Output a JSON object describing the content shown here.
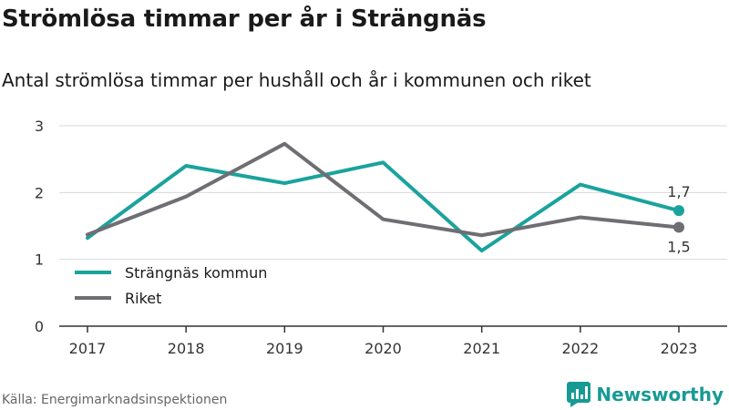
{
  "header": {
    "title": "Strömlösa timmar per år i Strängnäs",
    "subtitle": "Antal strömlösa timmar per hushåll och år i kommunen och riket"
  },
  "footer": {
    "source": "Källa: Energimarknadsinspektionen",
    "brand": "Newsworthy",
    "brand_color": "#189a94",
    "brand_icon": "bar-chart-speech-bubble-icon"
  },
  "chart_data": {
    "type": "line",
    "x": [
      "2017",
      "2018",
      "2019",
      "2020",
      "2021",
      "2022",
      "2023"
    ],
    "ylim": [
      0,
      3
    ],
    "yticks": [
      "0",
      "1",
      "2",
      "3"
    ],
    "grid": true,
    "legend_position": "bottom-left",
    "series": [
      {
        "name": "Strängnäs kommun",
        "color": "#1aa39c",
        "values": [
          1.32,
          2.4,
          2.14,
          2.45,
          1.13,
          2.12,
          1.73
        ],
        "end_label": "1,7"
      },
      {
        "name": "Riket",
        "color": "#6e6e73",
        "values": [
          1.37,
          1.94,
          2.73,
          1.6,
          1.36,
          1.63,
          1.48
        ],
        "end_label": "1,5"
      }
    ]
  }
}
